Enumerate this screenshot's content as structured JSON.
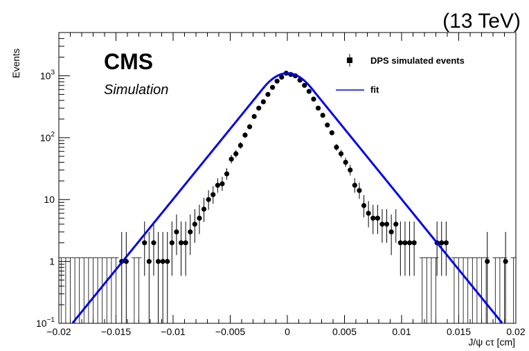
{
  "header": {
    "energy_label": "(13 TeV)"
  },
  "experiment": {
    "name": "CMS",
    "subtitle": "Simulation"
  },
  "legend": {
    "items": [
      {
        "label": "DPS simulated events"
      },
      {
        "label": "fit"
      }
    ]
  },
  "colors": {
    "fit": "#0000ee",
    "points": "#000000"
  },
  "chart_data": {
    "type": "scatter",
    "title": "",
    "xlabel": "J/ψ cτ [cm]",
    "ylabel": "Events",
    "xlim": [
      -0.02,
      0.02
    ],
    "ylim": [
      0.1,
      5000
    ],
    "log_y": true,
    "grid": false,
    "legend_position": "top-right",
    "x_ticks": [
      "-0.02",
      "-0.015",
      "-0.01",
      "-0.005",
      "0",
      "0.005",
      "0.01",
      "0.015",
      "0.02"
    ],
    "y_ticks": [
      {
        "base": "10",
        "exp": "-1"
      },
      {
        "base": "1",
        "exp": ""
      },
      {
        "base": "10",
        "exp": ""
      },
      {
        "base": "10",
        "exp": "2"
      },
      {
        "base": "10",
        "exp": "3"
      }
    ],
    "series": [
      {
        "name": "DPS simulated events",
        "x": [
          -0.0145,
          -0.0141,
          -0.0125,
          -0.0121,
          -0.0117,
          -0.0113,
          -0.0109,
          -0.0105,
          -0.0101,
          -0.0097,
          -0.0093,
          -0.0089,
          -0.0085,
          -0.0081,
          -0.0077,
          -0.0073,
          -0.0069,
          -0.0065,
          -0.0061,
          -0.0057,
          -0.0053,
          -0.0049,
          -0.0045,
          -0.0041,
          -0.0037,
          -0.0033,
          -0.0029,
          -0.0025,
          -0.0021,
          -0.0017,
          -0.0013,
          -0.0009,
          -0.0005,
          -0.0001,
          0.0003,
          0.0007,
          0.0011,
          0.0015,
          0.0019,
          0.0023,
          0.0027,
          0.0031,
          0.0035,
          0.0039,
          0.0043,
          0.0047,
          0.0051,
          0.0055,
          0.0059,
          0.0063,
          0.0067,
          0.0071,
          0.0075,
          0.0079,
          0.0083,
          0.0087,
          0.0091,
          0.0095,
          0.0099,
          0.0103,
          0.0107,
          0.0111,
          0.0131,
          0.0135,
          0.0139,
          0.0175,
          0.0191
        ],
        "y": [
          1,
          1,
          2,
          1,
          2,
          1,
          1,
          1,
          2,
          3,
          2,
          2,
          3,
          4,
          5,
          7,
          10,
          12,
          17,
          18,
          26,
          45,
          55,
          75,
          110,
          150,
          220,
          300,
          380,
          500,
          650,
          820,
          950,
          1100,
          1050,
          1000,
          850,
          700,
          560,
          420,
          300,
          230,
          160,
          120,
          70,
          55,
          40,
          30,
          17,
          14,
          8,
          6,
          5,
          5,
          4,
          4,
          3,
          4,
          2,
          2,
          2,
          2,
          2,
          2,
          2,
          1,
          1
        ]
      },
      {
        "name": "fit",
        "type": "line",
        "function": "gaussian-core with exponential tails"
      }
    ]
  }
}
